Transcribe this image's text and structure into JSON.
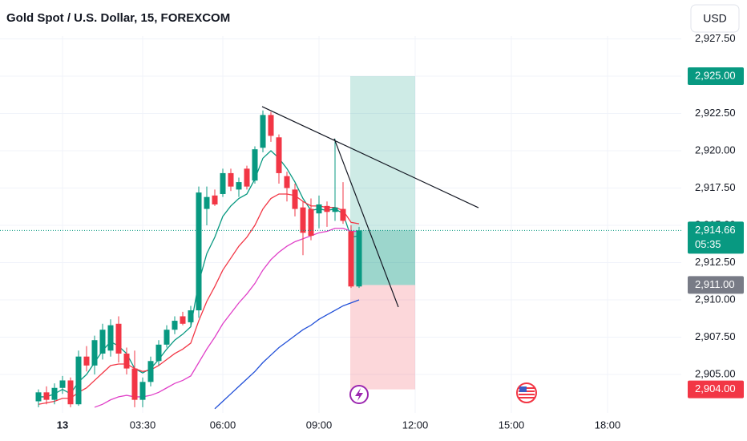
{
  "chart_data": {
    "type": "candlestick",
    "title": "Gold Spot / U.S. Dollar, 15, FOREXCOM",
    "currency": "USD",
    "categories": [
      null,
      null,
      null,
      "13",
      null,
      null,
      null,
      null,
      null,
      null,
      null,
      null,
      null,
      "03:30",
      null,
      null,
      null,
      null,
      null,
      null,
      null,
      null,
      null,
      "06:00",
      null,
      null,
      null,
      null,
      null,
      null,
      null,
      null,
      null,
      null,
      null,
      "09:00",
      null,
      null,
      null,
      null,
      null,
      null,
      null,
      null,
      null,
      null,
      null,
      "12:00",
      null,
      null,
      null,
      null,
      null,
      null,
      null,
      null,
      null,
      null,
      null,
      "15:00",
      null,
      null,
      null,
      null,
      null,
      null,
      null,
      null,
      null,
      null,
      null,
      "18:00"
    ],
    "open": [
      2903.2,
      2903.8,
      2903.3,
      2904.1,
      2904.6,
      2903.0,
      2906.2,
      2905.6,
      2906.4,
      2906.6,
      2908.4,
      2906.4,
      2905.4,
      2903.3,
      2904.5,
      2905.9,
      2907.0,
      2908.0,
      2908.9,
      2908.5,
      2909.3,
      2916.1,
      2917.0,
      2917.1,
      2918.5,
      2917.4,
      2918.8,
      2918.0,
      2920.2,
      2922.4,
      2920.9,
      2918.3,
      2917.4,
      2916.2,
      2916.1,
      2915.8,
      2916.3,
      2915.9,
      2916.1,
      2914.6,
      2910.9,
      null,
      null,
      null,
      null,
      null,
      null,
      null,
      null,
      null,
      null,
      null,
      null,
      null,
      null,
      null,
      null,
      null,
      null,
      null,
      null,
      null,
      null,
      null,
      null,
      null,
      null,
      null,
      null,
      null,
      null,
      null
    ],
    "high": [
      2904.0,
      2904.2,
      2904.4,
      2904.9,
      2904.8,
      2906.6,
      2906.9,
      2907.6,
      2908.4,
      2908.7,
      2908.9,
      2906.8,
      2906.6,
      2904.8,
      2906.2,
      2907.3,
      2908.3,
      2908.9,
      2909.2,
      2909.6,
      2917.6,
      2917.6,
      2917.4,
      2918.8,
      2918.8,
      2918.2,
      2919.0,
      2920.3,
      2922.7,
      2922.6,
      2921.1,
      2918.6,
      2917.8,
      2916.6,
      2916.8,
      2917.0,
      2916.6,
      2920.8,
      2917.9,
      2915.0,
      2914.9,
      null,
      null,
      null,
      null,
      null,
      null,
      null,
      null,
      null,
      null,
      null,
      null,
      null,
      null,
      null,
      null,
      null,
      null,
      null,
      null,
      null,
      null,
      null,
      null,
      null,
      null,
      null,
      null,
      null,
      null,
      null
    ],
    "low": [
      2902.8,
      2903.0,
      2903.0,
      2903.7,
      2902.8,
      2902.9,
      2905.2,
      2905.0,
      2906.0,
      2906.2,
      2905.8,
      2905.0,
      2902.8,
      2902.8,
      2904.2,
      2905.6,
      2906.8,
      2907.7,
      2908.3,
      2908.2,
      2908.8,
      2915.0,
      2916.3,
      2916.9,
      2917.3,
      2916.9,
      2917.4,
      2917.8,
      2919.9,
      2920.6,
      2917.8,
      2916.6,
      2915.6,
      2913.0,
      2914.0,
      2914.8,
      2914.9,
      2915.3,
      2915.1,
      2910.8,
      2910.8,
      null,
      null,
      null,
      null,
      null,
      null,
      null,
      null,
      null,
      null,
      null,
      null,
      null,
      null,
      null,
      null,
      null,
      null,
      null,
      null,
      null,
      null,
      null,
      null,
      null,
      null,
      null,
      null,
      null,
      null,
      null
    ],
    "close": [
      2903.8,
      2903.3,
      2904.1,
      2904.6,
      2903.0,
      2906.2,
      2905.6,
      2907.3,
      2908.0,
      2908.3,
      2906.4,
      2905.4,
      2903.3,
      2904.5,
      2905.9,
      2907.0,
      2908.0,
      2908.6,
      2908.4,
      2909.3,
      2917.2,
      2916.9,
      2916.4,
      2918.5,
      2917.6,
      2917.9,
      2917.6,
      2920.1,
      2922.4,
      2921.0,
      2918.5,
      2917.5,
      2916.1,
      2914.5,
      2914.3,
      2916.4,
      2915.9,
      2916.2,
      2915.3,
      2910.9,
      2914.66,
      null,
      null,
      null,
      null,
      null,
      null,
      null,
      null,
      null,
      null,
      null,
      null,
      null,
      null,
      null,
      null,
      null,
      null,
      null,
      null,
      null,
      null,
      null,
      null,
      null,
      null,
      null,
      null,
      null,
      null,
      null
    ],
    "up_color": "#089981",
    "down_color": "#f23645",
    "lines": [
      {
        "color": "#089981",
        "values": [
          2903.5,
          2903.5,
          2903.7,
          2904.0,
          2903.7,
          2904.5,
          2905.0,
          2905.8,
          2906.6,
          2907.2,
          2906.9,
          2906.4,
          2905.4,
          2905.1,
          2905.4,
          2906.0,
          2906.7,
          2907.3,
          2907.7,
          2908.2,
          2911.2,
          2913.1,
          2914.2,
          2915.6,
          2916.3,
          2916.8,
          2917.1,
          2918.1,
          2919.5,
          2920.0,
          2919.5,
          2918.8,
          2917.9,
          2916.8,
          2916.0,
          2916.1,
          2916.0,
          2916.1,
          2915.8,
          2914.2,
          2914.3,
          null,
          null,
          null,
          null,
          null,
          null,
          null,
          null,
          null,
          null,
          null,
          null,
          null,
          null,
          null,
          null,
          null,
          null,
          null,
          null,
          null,
          null,
          null,
          null,
          null,
          null,
          null,
          null,
          null,
          null,
          null
        ]
      },
      {
        "color": "#f23645",
        "values": [
          2903.0,
          2903.1,
          2903.2,
          2903.4,
          2903.4,
          2903.8,
          2904.1,
          2904.6,
          2905.1,
          2905.6,
          2905.7,
          2905.7,
          2905.4,
          2905.2,
          2905.3,
          2905.6,
          2906.0,
          2906.4,
          2906.7,
          2907.1,
          2908.6,
          2909.9,
          2910.9,
          2912.0,
          2912.8,
          2913.6,
          2914.2,
          2915.0,
          2916.1,
          2916.8,
          2917.1,
          2917.1,
          2917.0,
          2916.6,
          2916.3,
          2916.3,
          2916.2,
          2916.2,
          2916.0,
          2915.2,
          2915.1,
          null,
          null,
          null,
          null,
          null,
          null,
          null,
          null,
          null,
          null,
          null,
          null,
          null,
          null,
          null,
          null,
          null,
          null,
          null,
          null,
          null,
          null,
          null,
          null,
          null,
          null,
          null,
          null,
          null,
          null,
          null
        ]
      },
      {
        "color": "#e040c8",
        "values": [
          null,
          null,
          null,
          null,
          null,
          null,
          null,
          2902.8,
          2903.0,
          2903.3,
          2903.5,
          2903.6,
          2903.5,
          2903.5,
          2903.6,
          2903.8,
          2904.1,
          2904.4,
          2904.6,
          2904.9,
          2905.8,
          2906.7,
          2907.5,
          2908.4,
          2909.1,
          2909.8,
          2910.4,
          2911.1,
          2912.0,
          2912.7,
          2913.2,
          2913.6,
          2913.9,
          2914.1,
          2914.3,
          2914.5,
          2914.6,
          2914.8,
          2914.8,
          2914.6,
          2914.6,
          null,
          null,
          null,
          null,
          null,
          null,
          null,
          null,
          null,
          null,
          null,
          null,
          null,
          null,
          null,
          null,
          null,
          null,
          null,
          null,
          null,
          null,
          null,
          null,
          null,
          null,
          null,
          null,
          null,
          null,
          null
        ]
      },
      {
        "color": "#2250d8",
        "values": [
          null,
          null,
          null,
          null,
          null,
          null,
          null,
          null,
          null,
          null,
          null,
          null,
          null,
          null,
          null,
          null,
          null,
          null,
          null,
          null,
          null,
          null,
          2902.7,
          2903.2,
          2903.7,
          2904.2,
          2904.7,
          2905.2,
          2905.8,
          2906.3,
          2906.8,
          2907.2,
          2907.6,
          2908.0,
          2908.3,
          2908.7,
          2909.0,
          2909.3,
          2909.6,
          2909.8,
          2910.0,
          null,
          null,
          null,
          null,
          null,
          null,
          null,
          null,
          null,
          null,
          null,
          null,
          null,
          null,
          null,
          null,
          null,
          null,
          null,
          null,
          null,
          null,
          null,
          null,
          null,
          null,
          null,
          null,
          null,
          null,
          null
        ]
      }
    ],
    "ylim": [
      2902.42,
      2927.69
    ],
    "yticks": [
      {
        "value": 2905,
        "label": "2,905.00"
      },
      {
        "value": 2907.5,
        "label": "2,907.50"
      },
      {
        "value": 2910,
        "label": "2,910.00"
      },
      {
        "value": 2912.5,
        "label": "2,912.50"
      },
      {
        "value": 2915,
        "label": "2,915.00"
      },
      {
        "value": 2917.5,
        "label": "2,917.50"
      },
      {
        "value": 2920,
        "label": "2,920.00"
      },
      {
        "value": 2922.5,
        "label": "2,922.50"
      },
      {
        "value": 2925,
        "label": "2,925.00"
      },
      {
        "value": 2927.5,
        "label": "2,927.50"
      }
    ],
    "grid": true,
    "last_price": {
      "value": 2914.66,
      "label": "2,914.66",
      "countdown": "05:35"
    },
    "position": {
      "from": 39,
      "to": 47,
      "target": 2925,
      "target_label": "2,925.00",
      "entry": 2911,
      "entry_label": "2,911.00",
      "stop": 2904,
      "stop_label": "2,904.00"
    },
    "trend_lines": [
      {
        "from": [
          27.9,
          2922.96
        ],
        "to": [
          54.9,
          2916.18
        ]
      },
      {
        "from": [
          36.9,
          2920.81
        ],
        "to": [
          44.9,
          2909.52
        ]
      }
    ]
  }
}
